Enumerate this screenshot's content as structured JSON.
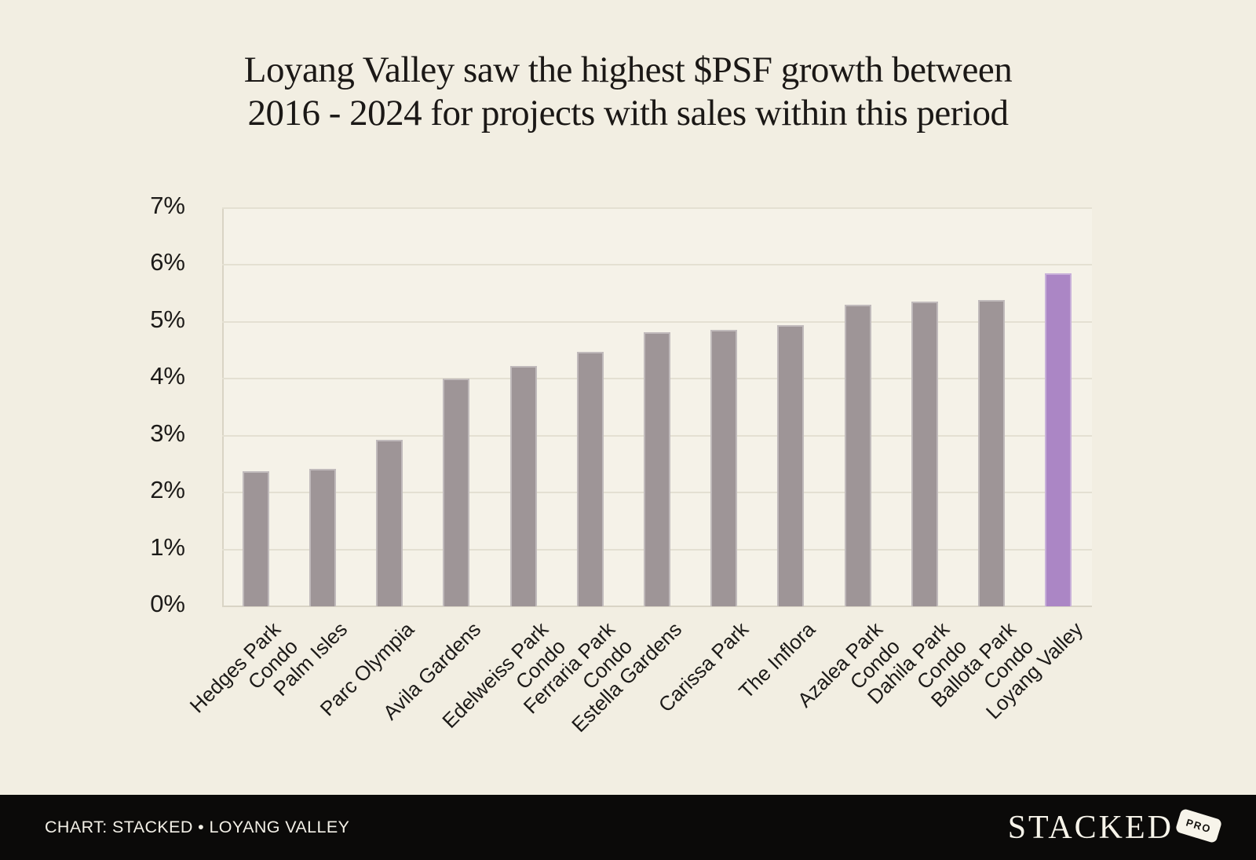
{
  "chart": {
    "title_line1": "Loyang Valley saw the highest $PSF growth between",
    "title_line2": "2016 - 2024 for projects with sales within this period"
  },
  "chart_data": {
    "type": "bar",
    "title": "Loyang Valley saw the highest $PSF growth between 2016 - 2024 for projects with sales within this period",
    "categories": [
      "Hedges Park Condo",
      "Palm Isles",
      "Parc Olympia",
      "Avila Gardens",
      "Edelweiss Park Condo",
      "Ferraria Park Condo",
      "Estella Gardens",
      "Carissa Park",
      "The Inflora",
      "Azalea Park Condo",
      "Dahila Park Condo",
      "Ballota Park Condo",
      "Loyang Valley"
    ],
    "category_lines": [
      [
        "Hedges Park",
        "Condo"
      ],
      [
        "Palm Isles"
      ],
      [
        "Parc Olympia"
      ],
      [
        "Avila Gardens"
      ],
      [
        "Edelweiss Park",
        "Condo"
      ],
      [
        "Ferraria Park",
        "Condo"
      ],
      [
        "Estella Gardens"
      ],
      [
        "Carissa Park"
      ],
      [
        "The Inflora"
      ],
      [
        "Azalea Park",
        "Condo"
      ],
      [
        "Dahila Park",
        "Condo"
      ],
      [
        "Ballota Park",
        "Condo"
      ],
      [
        "Loyang Valley"
      ]
    ],
    "values": [
      2.38,
      2.42,
      2.93,
      4.0,
      4.23,
      4.47,
      4.82,
      4.86,
      4.94,
      5.3,
      5.36,
      5.39,
      5.85
    ],
    "unit": "%",
    "xlabel": "",
    "ylabel": "",
    "ylim": [
      0,
      7
    ],
    "ytick_step": 1,
    "ytick_labels": [
      "0%",
      "1%",
      "2%",
      "3%",
      "4%",
      "5%",
      "6%",
      "7%"
    ],
    "grid": true,
    "legend": "none",
    "highlight_category": "Loyang Valley",
    "bar_color": "#9e9597",
    "highlight_color": "#ab86c5",
    "background_color": "#f2eee2",
    "plot_background_color": "#f5f2e8"
  },
  "footer": {
    "credit": "CHART: STACKED • LOYANG VALLEY",
    "logo_text": "STACKED",
    "logo_badge": "PRO"
  }
}
